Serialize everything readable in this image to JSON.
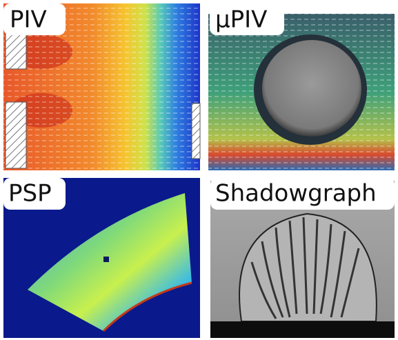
{
  "panels": [
    {
      "label": "PIV"
    },
    {
      "label": "μPIV"
    },
    {
      "label": "PSP"
    },
    {
      "label": "Shadowgraph"
    }
  ]
}
